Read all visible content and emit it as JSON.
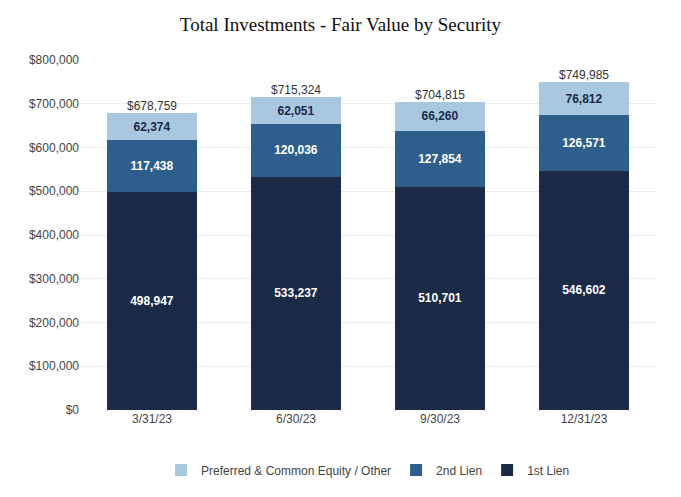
{
  "chart_data": {
    "type": "bar",
    "title": "Total Investments - Fair Value by Security",
    "categories": [
      "3/31/23",
      "6/30/23",
      "9/30/23",
      "12/31/23"
    ],
    "stacked": true,
    "data_labels": true,
    "series": [
      {
        "name": "1st Lien",
        "color": "#1b2a47",
        "values": [
          498947,
          533237,
          510701,
          546602
        ],
        "value_labels": [
          "498,947",
          "533,237",
          "510,701",
          "546,602"
        ]
      },
      {
        "name": "2nd Lien",
        "color": "#2e5f8c",
        "values": [
          117438,
          120036,
          127854,
          126571
        ],
        "value_labels": [
          "117,438",
          "120,036",
          "127,854",
          "126,571"
        ]
      },
      {
        "name": "Preferred & Common Equity / Other",
        "color": "#a8c8e0",
        "values": [
          62374,
          62051,
          66260,
          76812
        ],
        "value_labels": [
          "62,374",
          "62,051",
          "66,260",
          "76,812"
        ]
      }
    ],
    "totals": [
      678759,
      715324,
      704815,
      749985
    ],
    "total_labels": [
      "$678,759",
      "$715,324",
      "$704,815",
      "$749,985"
    ],
    "ylim": [
      0,
      800000
    ],
    "yticks": [
      {
        "value": 0,
        "label": "$0"
      },
      {
        "value": 100000,
        "label": "$100,000"
      },
      {
        "value": 200000,
        "label": "$200,000"
      },
      {
        "value": 300000,
        "label": "$300,000"
      },
      {
        "value": 400000,
        "label": "$400,000"
      },
      {
        "value": 500000,
        "label": "$500,000"
      },
      {
        "value": 600000,
        "label": "$600,000"
      },
      {
        "value": 700000,
        "label": "$700,000"
      },
      {
        "value": 800000,
        "label": "$800,000"
      }
    ],
    "grid": true,
    "legend": "bottom"
  }
}
